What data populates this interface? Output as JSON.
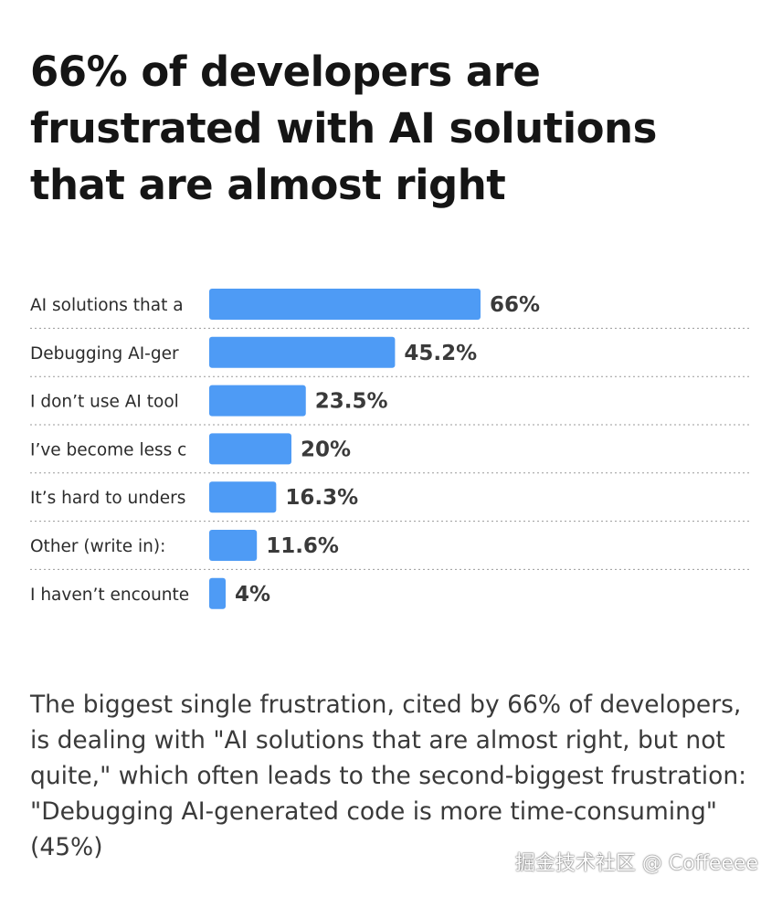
{
  "colors": {
    "bar": "#4e9bf5",
    "title": "#151515",
    "text": "#3a3a3a"
  },
  "title": "66% of developers are frustrated with AI solutions that are almost right",
  "description": "The biggest single frustration, cited by 66% of developers, is dealing with \"AI solutions that are almost right, but not quite,\" which often leads to the second-biggest frustration: \"Debugging AI-generated code is more time-consuming\" (45%)",
  "watermark": "掘金技术社区 @ Coffeeee",
  "chart_data": {
    "type": "bar",
    "orientation": "horizontal",
    "categories": [
      "AI solutions that a",
      "Debugging AI-ger",
      "I don’t use AI tool",
      "I’ve become less c",
      "It’s hard to unders",
      "Other (write in):",
      "I haven’t encounte"
    ],
    "values": [
      66,
      45.2,
      23.5,
      20,
      16.3,
      11.6,
      4
    ],
    "value_labels": [
      "66%",
      "45.2%",
      "23.5%",
      "20%",
      "16.3%",
      "11.6%",
      "4%"
    ],
    "unit": "%",
    "xlim": [
      0,
      66
    ],
    "grid": false,
    "legend": "none",
    "row_separators": "dotted"
  }
}
